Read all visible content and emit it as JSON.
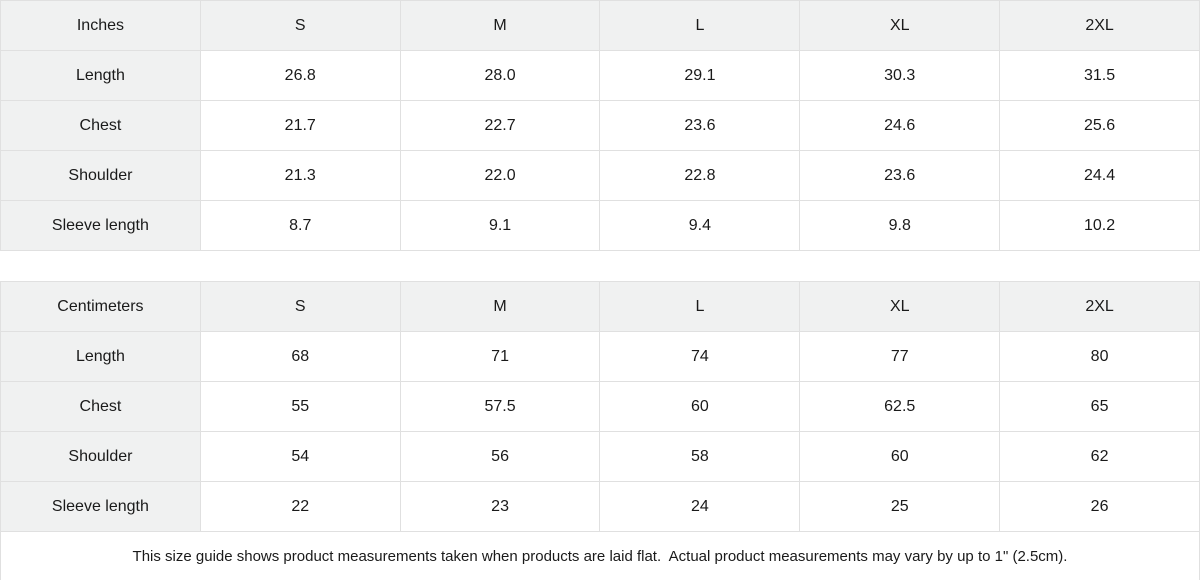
{
  "theme": {
    "header_bg": "#f0f1f1",
    "border_color": "#e0e0e0",
    "text_color": "#1a1a1a",
    "background": "#ffffff"
  },
  "tables": [
    {
      "id": "inches",
      "unit_label": "Inches",
      "columns": [
        "S",
        "M",
        "L",
        "XL",
        "2XL"
      ],
      "rows": [
        {
          "label": "Length",
          "values": [
            "26.8",
            "28.0",
            "29.1",
            "30.3",
            "31.5"
          ]
        },
        {
          "label": "Chest",
          "values": [
            "21.7",
            "22.7",
            "23.6",
            "24.6",
            "25.6"
          ]
        },
        {
          "label": "Shoulder",
          "values": [
            "21.3",
            "22.0",
            "22.8",
            "23.6",
            "24.4"
          ]
        },
        {
          "label": "Sleeve length",
          "values": [
            "8.7",
            "9.1",
            "9.4",
            "9.8",
            "10.2"
          ]
        }
      ]
    },
    {
      "id": "centimeters",
      "unit_label": "Centimeters",
      "columns": [
        "S",
        "M",
        "L",
        "XL",
        "2XL"
      ],
      "rows": [
        {
          "label": "Length",
          "values": [
            "68",
            "71",
            "74",
            "77",
            "80"
          ]
        },
        {
          "label": "Chest",
          "values": [
            "55",
            "57.5",
            "60",
            "62.5",
            "65"
          ]
        },
        {
          "label": "Shoulder",
          "values": [
            "54",
            "56",
            "58",
            "60",
            "62"
          ]
        },
        {
          "label": "Sleeve length",
          "values": [
            "22",
            "23",
            "24",
            "25",
            "26"
          ]
        }
      ]
    }
  ],
  "footer": {
    "note": "This size guide shows product measurements taken when products are laid flat.  Actual product measurements may vary by up to 1\" (2.5cm)."
  }
}
